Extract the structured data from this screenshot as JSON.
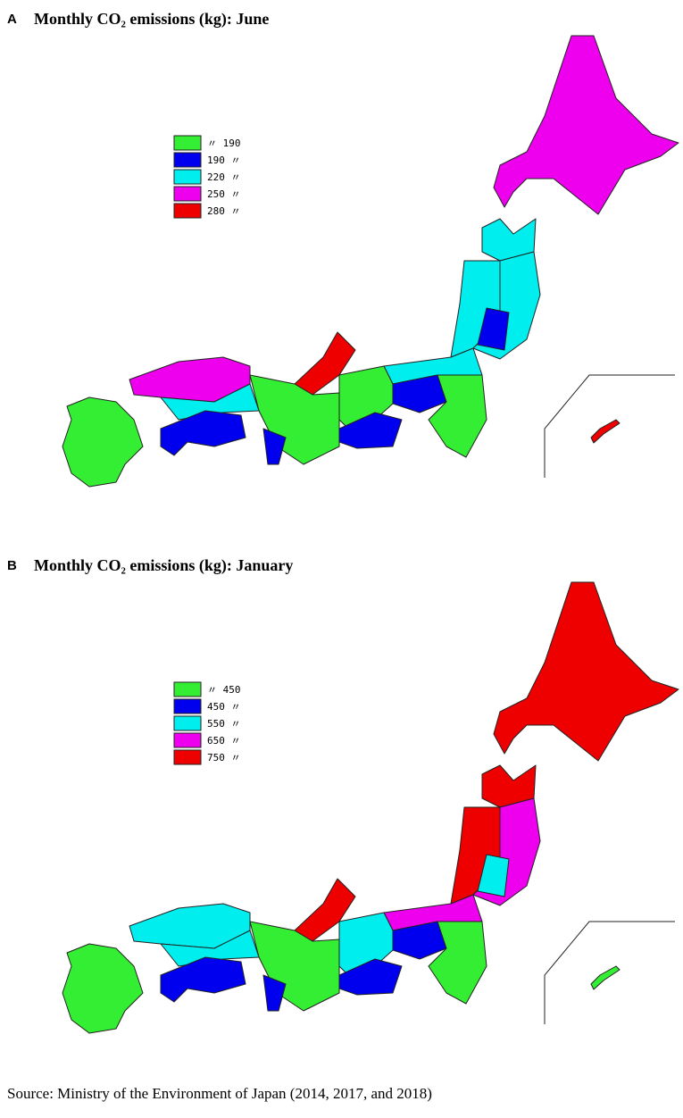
{
  "panels": [
    {
      "label": "A",
      "title": "Monthly CO₂ emissions (kg): June",
      "legend": [
        {
          "label": "〃 190",
          "color": "#33ee33"
        },
        {
          "label": "190 〃",
          "color": "#0000ee"
        },
        {
          "label": "220 〃",
          "color": "#00eeee"
        },
        {
          "label": "250 〃",
          "color": "#ee00ee"
        },
        {
          "label": "280 〃",
          "color": "#ee0000"
        }
      ]
    },
    {
      "label": "B",
      "title": "Monthly CO₂ emissions (kg): January",
      "legend": [
        {
          "label": "〃 450",
          "color": "#33ee33"
        },
        {
          "label": "450 〃",
          "color": "#0000ee"
        },
        {
          "label": "550 〃",
          "color": "#00eeee"
        },
        {
          "label": "650 〃",
          "color": "#ee00ee"
        },
        {
          "label": "750 〃",
          "color": "#ee0000"
        }
      ]
    }
  ],
  "source": "Source: Ministry of the Environment of Japan (2014, 2017, and 2018)"
}
